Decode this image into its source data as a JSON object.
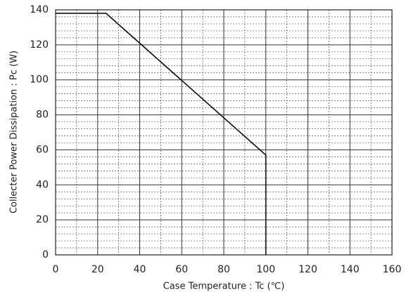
{
  "chart_data": {
    "type": "line",
    "xlabel": "Case Temperature : Tc (℃)",
    "ylabel": "Collecter Power Dissipation : Pc (W)",
    "x": [
      0,
      24,
      100,
      100
    ],
    "series": [
      {
        "color": "#111111",
        "values": [
          138,
          138,
          57,
          0
        ]
      }
    ],
    "xlim": [
      0,
      160
    ],
    "xticks": [
      0,
      20,
      40,
      60,
      80,
      100,
      120,
      140,
      160
    ],
    "ylim": [
      0,
      140
    ],
    "yticks": [
      0,
      20,
      40,
      60,
      80,
      100,
      120,
      140
    ],
    "xminorticks": [
      10,
      30,
      50,
      70,
      90,
      110,
      130,
      150
    ],
    "yminorticks": [
      4,
      8,
      12,
      16,
      24,
      28,
      32,
      36,
      44,
      48,
      52,
      56,
      64,
      68,
      72,
      76,
      84,
      88,
      92,
      96,
      104,
      108,
      112,
      116,
      124,
      128,
      132,
      136
    ],
    "grid": true
  }
}
